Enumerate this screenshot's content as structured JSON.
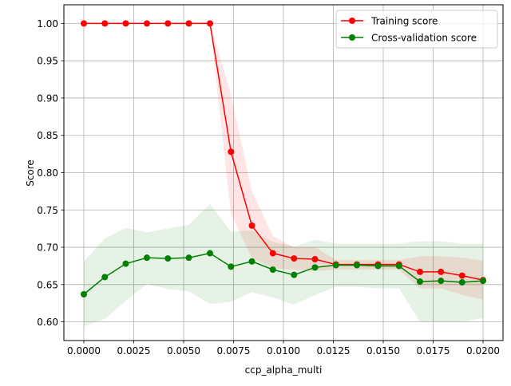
{
  "chart_data": {
    "type": "line",
    "title": "",
    "xlabel": "ccp_alpha_multi",
    "ylabel": "Score",
    "xlim": [
      -0.001,
      0.021
    ],
    "ylim": [
      0.575,
      1.025
    ],
    "xticks": [
      0.0,
      0.0025,
      0.005,
      0.0075,
      0.01,
      0.0125,
      0.015,
      0.0175,
      0.02
    ],
    "xtick_labels": [
      "0.0000",
      "0.0025",
      "0.0050",
      "0.0075",
      "0.0100",
      "0.0125",
      "0.0150",
      "0.0175",
      "0.0200"
    ],
    "yticks": [
      0.6,
      0.65,
      0.7,
      0.75,
      0.8,
      0.85,
      0.9,
      0.95,
      1.0
    ],
    "ytick_labels": [
      "0.60",
      "0.65",
      "0.70",
      "0.75",
      "0.80",
      "0.85",
      "0.90",
      "0.95",
      "1.00"
    ],
    "grid": true,
    "legend_position": "top-right",
    "x": [
      0.0,
      0.00105,
      0.0021,
      0.00316,
      0.00421,
      0.00526,
      0.00632,
      0.00737,
      0.00842,
      0.00947,
      0.01053,
      0.01158,
      0.01263,
      0.01368,
      0.01474,
      0.01579,
      0.01684,
      0.01789,
      0.01895,
      0.02
    ],
    "series": [
      {
        "name": "Training score",
        "color": "#ff0000",
        "values": [
          1.0,
          1.0,
          1.0,
          1.0,
          1.0,
          1.0,
          1.0,
          0.828,
          0.729,
          0.692,
          0.685,
          0.684,
          0.677,
          0.677,
          0.677,
          0.677,
          0.667,
          0.667,
          0.662,
          0.656
        ],
        "band_low": [
          1.0,
          1.0,
          1.0,
          1.0,
          1.0,
          1.0,
          1.0,
          0.745,
          0.685,
          0.672,
          0.67,
          0.668,
          0.67,
          0.67,
          0.67,
          0.67,
          0.645,
          0.645,
          0.636,
          0.63
        ],
        "band_high": [
          1.0,
          1.0,
          1.0,
          1.0,
          1.0,
          1.0,
          1.0,
          0.905,
          0.775,
          0.715,
          0.7,
          0.7,
          0.683,
          0.683,
          0.683,
          0.683,
          0.688,
          0.688,
          0.686,
          0.682
        ]
      },
      {
        "name": "Cross-validation score",
        "color": "#008000",
        "values": [
          0.637,
          0.66,
          0.678,
          0.686,
          0.685,
          0.686,
          0.692,
          0.674,
          0.681,
          0.67,
          0.663,
          0.673,
          0.676,
          0.676,
          0.675,
          0.675,
          0.654,
          0.655,
          0.653,
          0.655
        ],
        "band_low": [
          0.594,
          0.604,
          0.628,
          0.651,
          0.644,
          0.641,
          0.624,
          0.627,
          0.64,
          0.633,
          0.623,
          0.636,
          0.647,
          0.647,
          0.645,
          0.645,
          0.6,
          0.6,
          0.6,
          0.605
        ],
        "band_high": [
          0.681,
          0.712,
          0.726,
          0.72,
          0.725,
          0.73,
          0.758,
          0.721,
          0.723,
          0.707,
          0.701,
          0.71,
          0.705,
          0.705,
          0.705,
          0.705,
          0.708,
          0.708,
          0.705,
          0.705
        ]
      }
    ]
  }
}
